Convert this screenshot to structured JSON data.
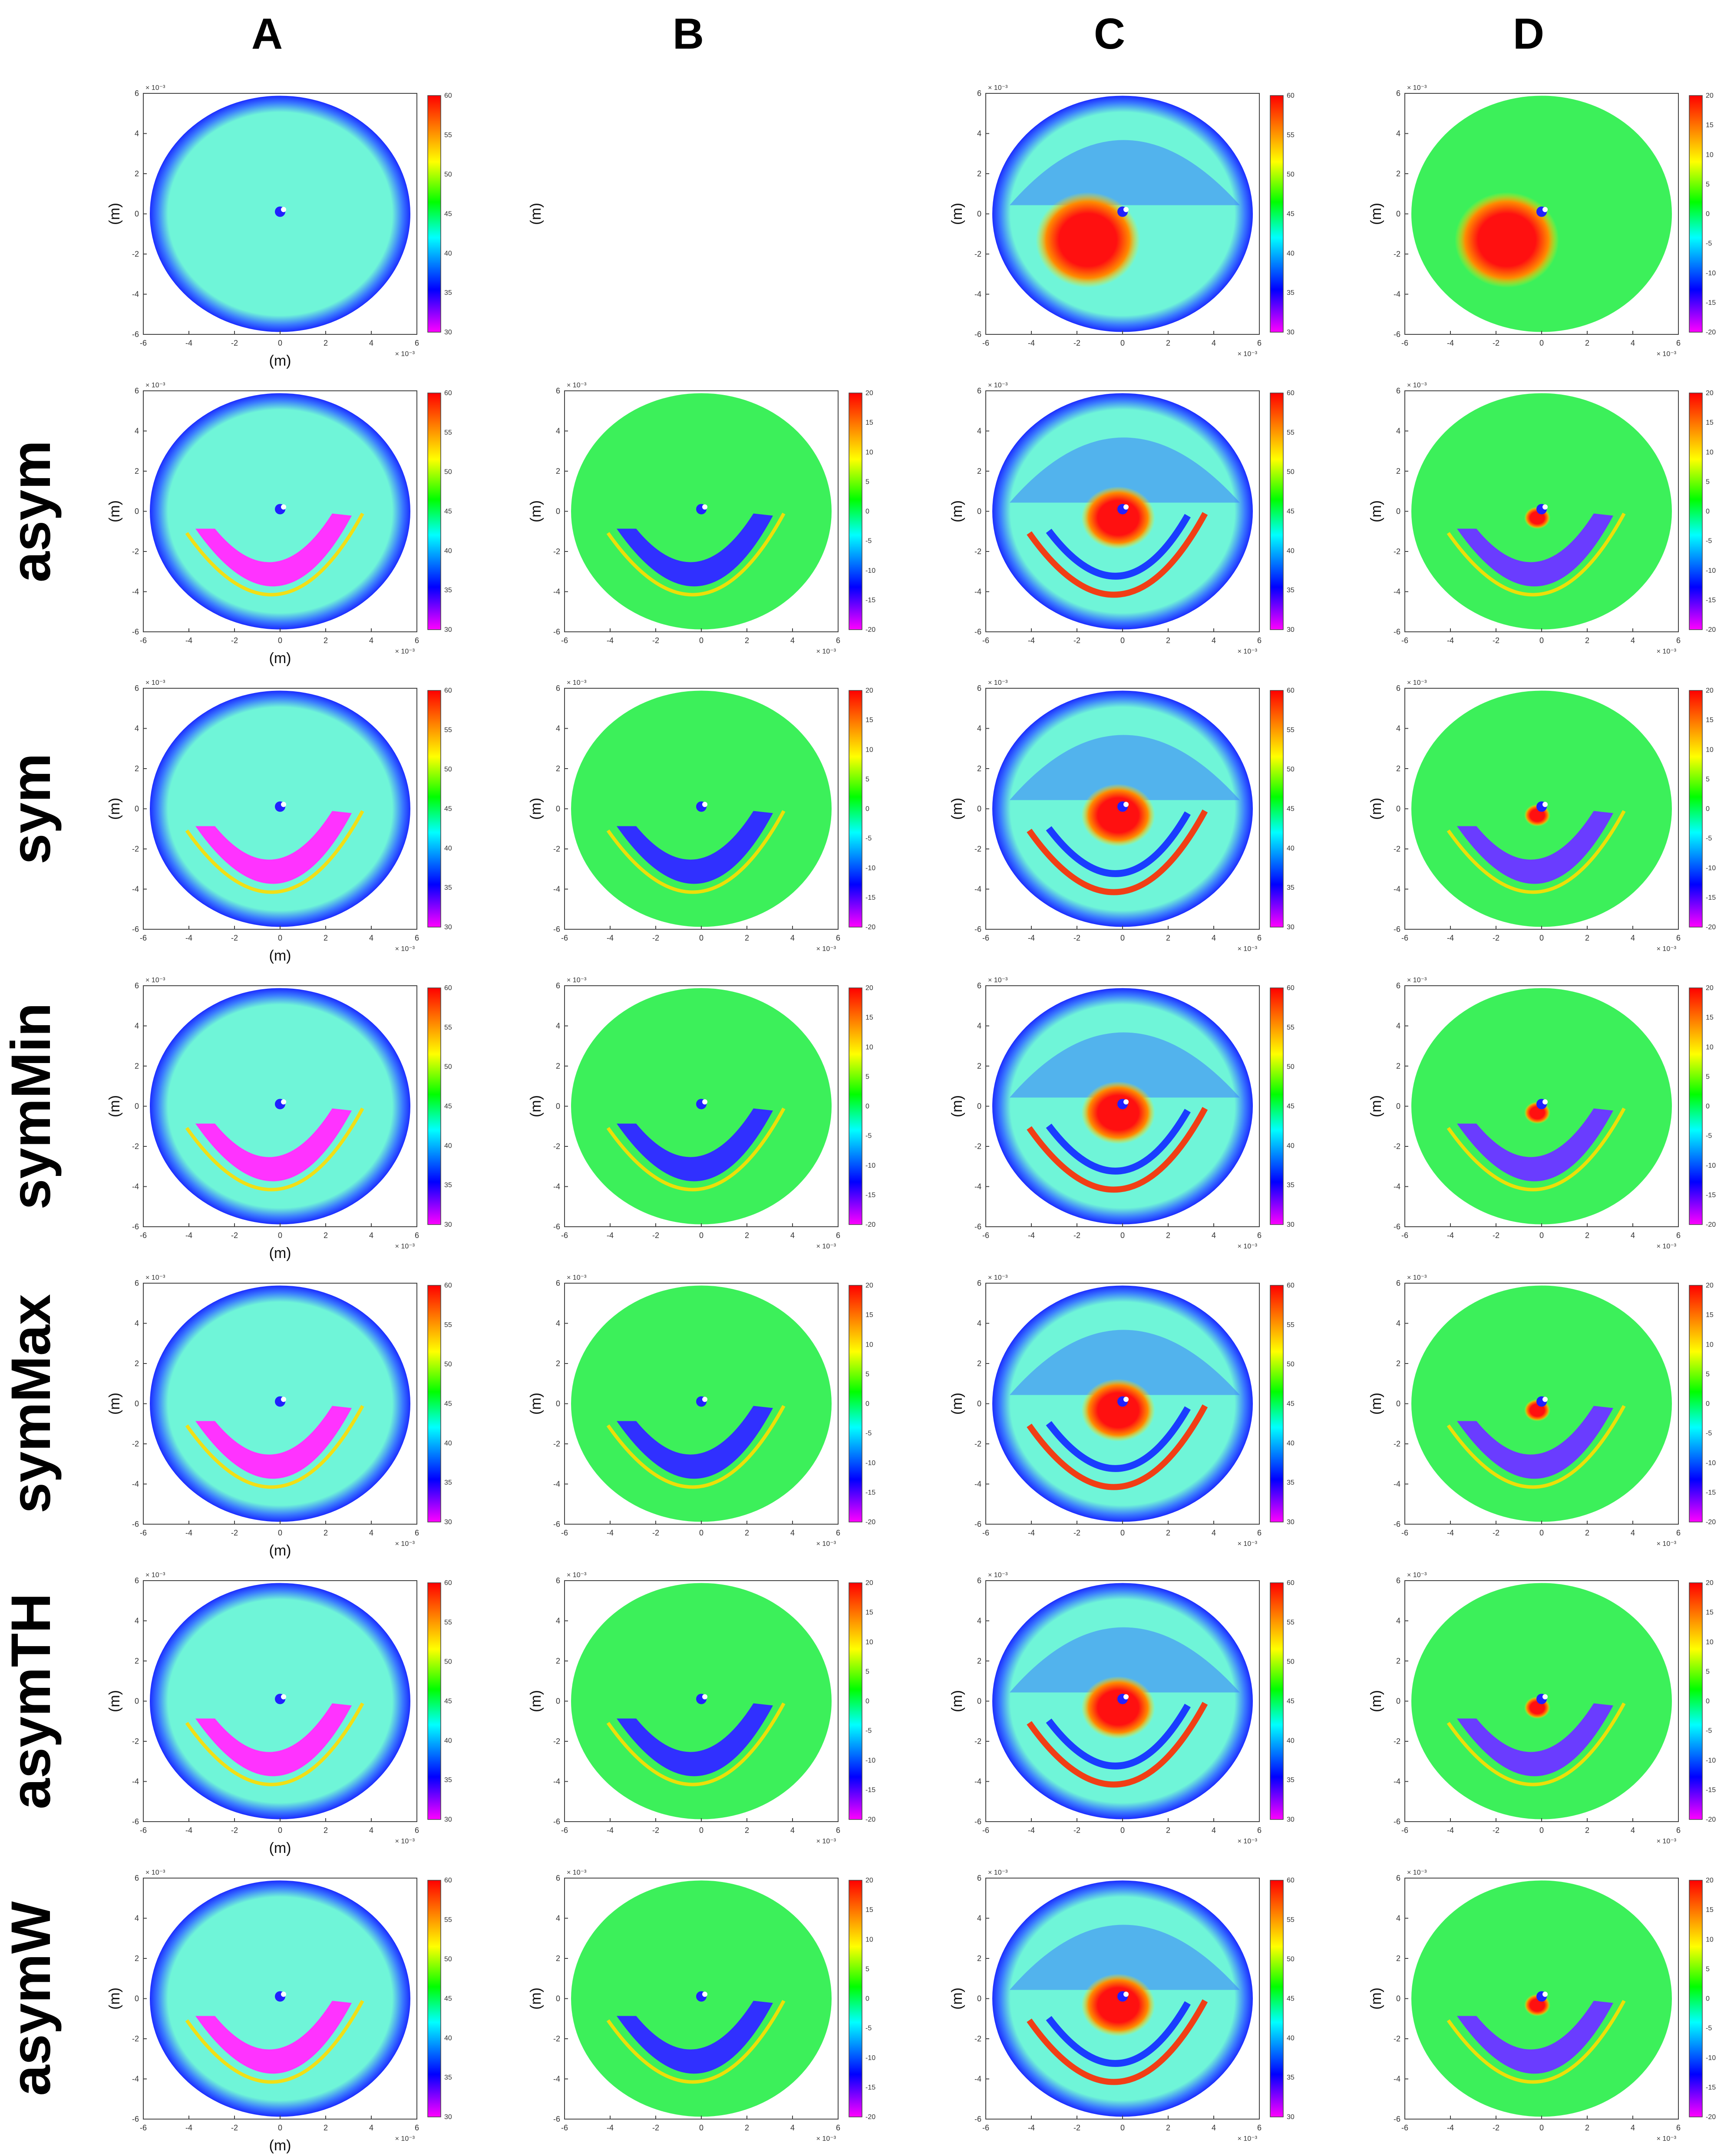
{
  "columns": [
    "A",
    "B",
    "C",
    "D"
  ],
  "rows": [
    "",
    "asym",
    "sym",
    "symMin",
    "symMax",
    "asymTH",
    "asymW"
  ],
  "axes": {
    "unit_label": "(m)",
    "exponent_label": "× 10⁻³",
    "ticks": [
      "-6",
      "-4",
      "-2",
      "0",
      "2",
      "4",
      "6"
    ]
  },
  "colorbar_ranges": {
    "A": {
      "min": 30,
      "max": 60,
      "ticks": [
        "60",
        "55",
        "50",
        "45",
        "40",
        "35",
        "30"
      ]
    },
    "B": {
      "min": -20,
      "max": 20,
      "ticks": [
        "20",
        "15",
        "10",
        "5",
        "0",
        "-5",
        "-10",
        "-15",
        "-20"
      ]
    },
    "C": {
      "min": 30,
      "max": 60,
      "ticks": [
        "60",
        "55",
        "50",
        "45",
        "40",
        "35",
        "30"
      ]
    },
    "D": {
      "min": -20,
      "max": 20,
      "ticks": [
        "20",
        "15",
        "10",
        "5",
        "0",
        "-5",
        "-10",
        "-15",
        "-20"
      ]
    }
  },
  "colorbar_gradient": [
    "#ff00ff",
    "#0000ff",
    "#00ffff",
    "#00ff00",
    "#ffff00",
    "#ff8000",
    "#ff0000"
  ],
  "field_colors": {
    "ring": "#2f5cff",
    "bg_speed": "#5ff0c8",
    "bg_diff": "#3cf05a",
    "band_speed": "#ff33ff",
    "band_diff": "#3030ff",
    "arc": "#ffdd00",
    "hot": "#ff1a1a",
    "cold": "#2050ff"
  },
  "empty_panels": [
    "0-1"
  ]
}
